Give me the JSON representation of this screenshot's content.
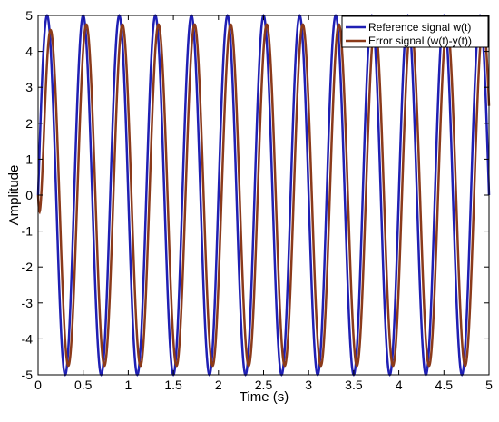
{
  "chart_data": {
    "type": "line",
    "title": "",
    "xlabel": "Time (s)",
    "ylabel": "Amplitude",
    "xlim": [
      0,
      5
    ],
    "ylim": [
      -5,
      5
    ],
    "x_ticks": [
      "0",
      "0.5",
      "1",
      "1.5",
      "2",
      "2.5",
      "3",
      "3.5",
      "4",
      "4.5",
      "5"
    ],
    "y_ticks": [
      "5",
      "4",
      "3",
      "2",
      "1",
      "0",
      "-1",
      "-2",
      "-3",
      "-4",
      "-5"
    ],
    "grid": false,
    "legend_position": "top-right",
    "series": [
      {
        "name": "Reference signal w(t)",
        "color": "#1f1fb4",
        "frequency_hz": 2.5,
        "amplitude": 5,
        "phase_rad": 0,
        "x": [
          0,
          0.1,
          0.2,
          0.3,
          0.4,
          0.5,
          0.6,
          0.7,
          0.8,
          0.9,
          1.0
        ],
        "y": [
          0,
          5,
          0,
          -5,
          0,
          5,
          0,
          -5,
          0,
          5,
          0
        ]
      },
      {
        "name": "Error signal (w(t)-y(t))",
        "color": "#8b3a1a",
        "frequency_hz": 2.5,
        "amplitude": 4.75,
        "phase_rad": 0.55,
        "x": [
          0,
          0.1,
          0.2,
          0.3,
          0.4,
          0.5
        ],
        "y": [
          0,
          3.6,
          1.5,
          -4.7,
          0.8,
          4.7
        ]
      }
    ]
  }
}
